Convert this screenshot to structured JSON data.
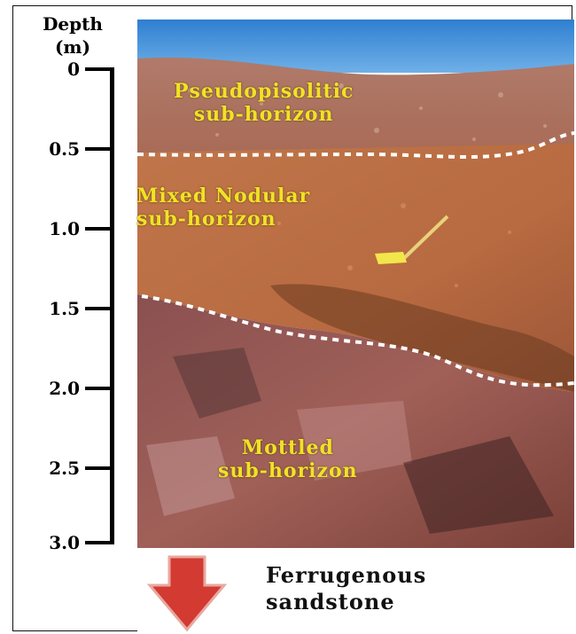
{
  "axis": {
    "title_line1": "Depth",
    "title_line2": "(m)",
    "ticks": [
      "0",
      "0.5",
      "1.0",
      "1.5",
      "2.0",
      "2.5",
      "3.0"
    ]
  },
  "horizons": {
    "upper_line1": "Pseudopisolitic",
    "upper_line2": "sub-horizon",
    "middle_line1": "Mixed Nodular",
    "middle_line2": "sub-horizon",
    "lower_line1": "Mottled",
    "lower_line2": "sub-horizon"
  },
  "base": {
    "line1": "Ferrugenous",
    "line2": "sandstone"
  },
  "colors": {
    "label_yellow": "#f0e227",
    "boundary_dash": "#ffffff",
    "arrow_red": "#d23a32",
    "sky": "#3f8fd6"
  }
}
